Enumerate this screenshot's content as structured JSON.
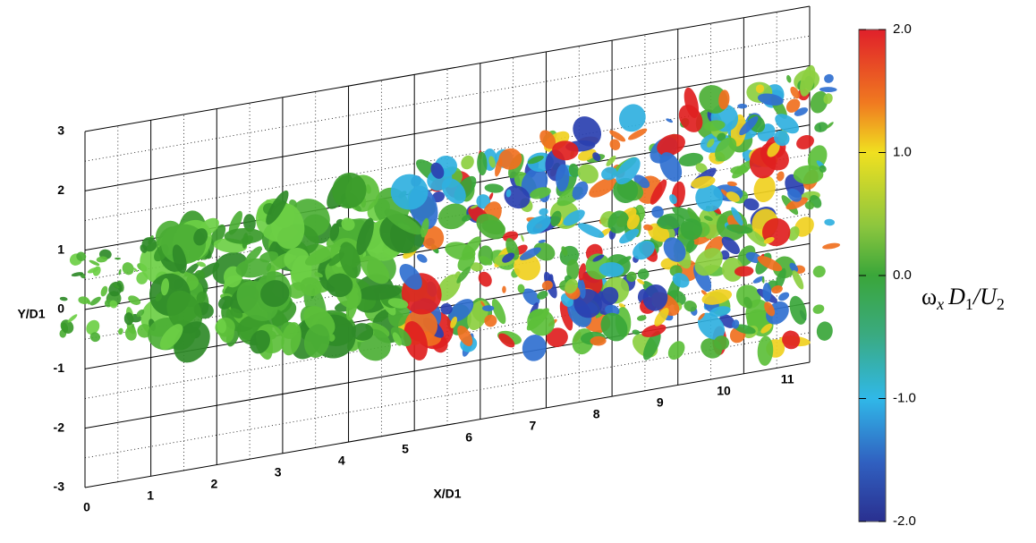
{
  "plot": {
    "x_axis": {
      "label": "X/D1",
      "ticks": [
        "0",
        "1",
        "2",
        "3",
        "4",
        "5",
        "6",
        "7",
        "8",
        "9",
        "10",
        "11"
      ]
    },
    "y_axis": {
      "label": "Y/D1",
      "ticks": [
        "-3",
        "-2",
        "-1",
        "0",
        "1",
        "2",
        "3"
      ]
    }
  },
  "colorbar": {
    "ticks": [
      "2.0",
      "1.0",
      "0.0",
      "-1.0",
      "-2.0"
    ],
    "label": [
      "ω",
      "x",
      "D",
      "1",
      "/U",
      "2"
    ]
  }
}
